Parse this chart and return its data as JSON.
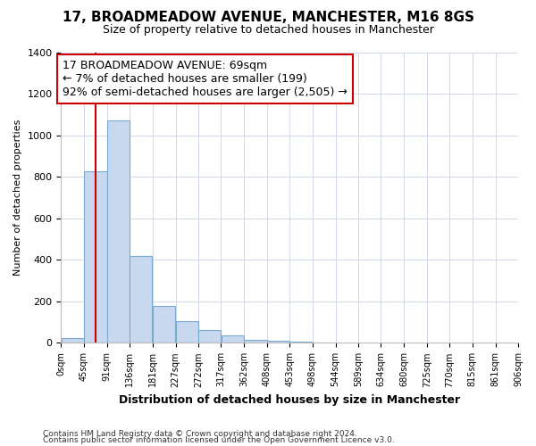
{
  "title1": "17, BROADMEADOW AVENUE, MANCHESTER, M16 8GS",
  "title2": "Size of property relative to detached houses in Manchester",
  "xlabel": "Distribution of detached houses by size in Manchester",
  "ylabel": "Number of detached properties",
  "bin_edges": [
    0,
    45,
    91,
    136,
    181,
    227,
    272,
    317,
    362,
    408,
    453,
    498,
    544,
    589,
    634,
    680,
    725,
    770,
    815,
    861,
    906
  ],
  "bin_labels": [
    "0sqm",
    "45sqm",
    "91sqm",
    "136sqm",
    "181sqm",
    "227sqm",
    "272sqm",
    "317sqm",
    "362sqm",
    "408sqm",
    "453sqm",
    "498sqm",
    "544sqm",
    "589sqm",
    "634sqm",
    "680sqm",
    "725sqm",
    "770sqm",
    "815sqm",
    "861sqm",
    "906sqm"
  ],
  "bar_heights": [
    25,
    830,
    1075,
    420,
    180,
    105,
    60,
    35,
    15,
    10,
    5,
    3,
    0,
    0,
    0,
    0,
    0,
    0,
    0,
    0
  ],
  "bar_color": "#c8d8ee",
  "bar_edge_color": "#7aaad0",
  "property_size": 69,
  "vline_color": "#cc0000",
  "annotation_text": "17 BROADMEADOW AVENUE: 69sqm\n← 7% of detached houses are smaller (199)\n92% of semi-detached houses are larger (2,505) →",
  "annotation_box_color": "#ffffff",
  "annotation_border_color": "#cc0000",
  "ylim": [
    0,
    1400
  ],
  "yticks": [
    0,
    200,
    400,
    600,
    800,
    1000,
    1200,
    1400
  ],
  "footer1": "Contains HM Land Registry data © Crown copyright and database right 2024.",
  "footer2": "Contains public sector information licensed under the Open Government Licence v3.0.",
  "bg_color": "#ffffff",
  "plot_bg_color": "#ffffff",
  "grid_color": "#d0d8e8"
}
